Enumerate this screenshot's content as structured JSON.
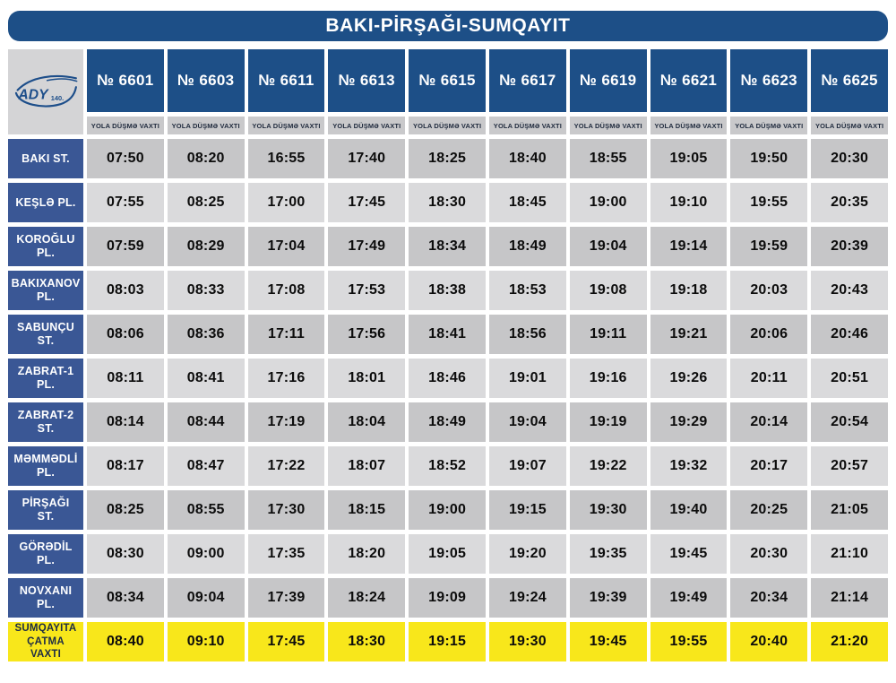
{
  "title": "BAKI-PİRŞAĞI-SUMQAYIT",
  "logo": {
    "brand": "ADY",
    "badge": "140."
  },
  "departure_label": "YOLA DÜŞMƏ VAXTI",
  "trains": [
    "№ 6601",
    "№ 6603",
    "№ 6611",
    "№ 6613",
    "№ 6615",
    "№ 6617",
    "№ 6619",
    "№ 6621",
    "№ 6623",
    "№ 6625"
  ],
  "stations": [
    {
      "name": "BAKI ST.",
      "times": [
        "07:50",
        "08:20",
        "16:55",
        "17:40",
        "18:25",
        "18:40",
        "18:55",
        "19:05",
        "19:50",
        "20:30"
      ]
    },
    {
      "name": "KEŞLƏ PL.",
      "times": [
        "07:55",
        "08:25",
        "17:00",
        "17:45",
        "18:30",
        "18:45",
        "19:00",
        "19:10",
        "19:55",
        "20:35"
      ]
    },
    {
      "name": "KOROĞLU PL.",
      "times": [
        "07:59",
        "08:29",
        "17:04",
        "17:49",
        "18:34",
        "18:49",
        "19:04",
        "19:14",
        "19:59",
        "20:39"
      ]
    },
    {
      "name": "BAKIXANOV PL.",
      "times": [
        "08:03",
        "08:33",
        "17:08",
        "17:53",
        "18:38",
        "18:53",
        "19:08",
        "19:18",
        "20:03",
        "20:43"
      ]
    },
    {
      "name": "SABUNÇU ST.",
      "times": [
        "08:06",
        "08:36",
        "17:11",
        "17:56",
        "18:41",
        "18:56",
        "19:11",
        "19:21",
        "20:06",
        "20:46"
      ]
    },
    {
      "name": "ZABRAT-1 PL.",
      "times": [
        "08:11",
        "08:41",
        "17:16",
        "18:01",
        "18:46",
        "19:01",
        "19:16",
        "19:26",
        "20:11",
        "20:51"
      ]
    },
    {
      "name": "ZABRAT-2 ST.",
      "times": [
        "08:14",
        "08:44",
        "17:19",
        "18:04",
        "18:49",
        "19:04",
        "19:19",
        "19:29",
        "20:14",
        "20:54"
      ]
    },
    {
      "name": "MƏMMƏDLİ PL.",
      "times": [
        "08:17",
        "08:47",
        "17:22",
        "18:07",
        "18:52",
        "19:07",
        "19:22",
        "19:32",
        "20:17",
        "20:57"
      ]
    },
    {
      "name": "PİRŞAĞI ST.",
      "times": [
        "08:25",
        "08:55",
        "17:30",
        "18:15",
        "19:00",
        "19:15",
        "19:30",
        "19:40",
        "20:25",
        "21:05"
      ]
    },
    {
      "name": "GÖRƏDİL PL.",
      "times": [
        "08:30",
        "09:00",
        "17:35",
        "18:20",
        "19:05",
        "19:20",
        "19:35",
        "19:45",
        "20:30",
        "21:10"
      ]
    },
    {
      "name": "NOVXANI PL.",
      "times": [
        "08:34",
        "09:04",
        "17:39",
        "18:24",
        "19:09",
        "19:24",
        "19:39",
        "19:49",
        "20:34",
        "21:14"
      ]
    }
  ],
  "arrival": {
    "name": "SUMQAYITA ÇATMA VAXTI",
    "times": [
      "08:40",
      "09:10",
      "17:45",
      "18:30",
      "19:15",
      "19:30",
      "19:45",
      "19:55",
      "20:40",
      "21:20"
    ]
  },
  "colors": {
    "navy": "#1d4f87",
    "station_blue": "#3a5795",
    "row_dark": "#c6c6c8",
    "row_light": "#dadadc",
    "yellow": "#f8e71b",
    "panel_gray": "#d4d4d6",
    "subheader_gray": "#c9c9cb"
  }
}
